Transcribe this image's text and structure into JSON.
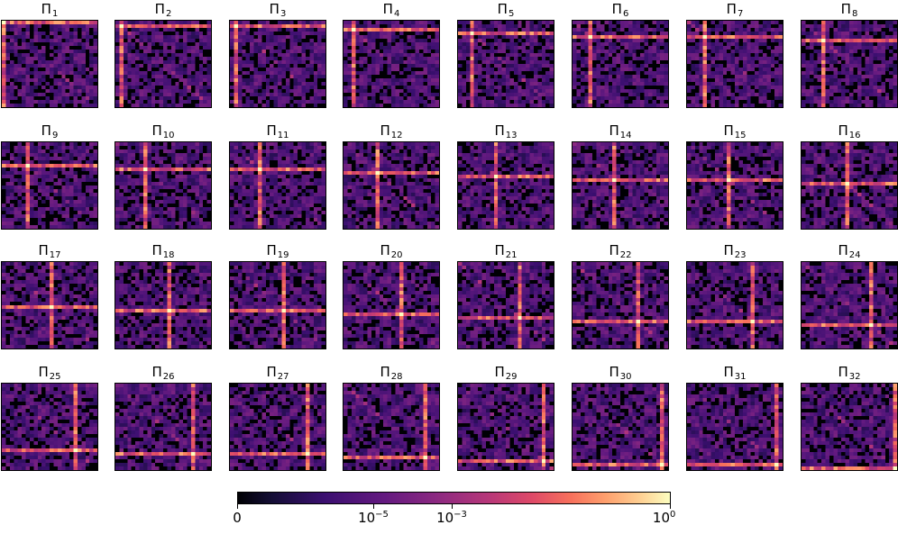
{
  "chart_data": {
    "type": "heatmap",
    "grid": {
      "rows": 4,
      "cols": 8
    },
    "colormap": "magma",
    "colorscale": "log",
    "panels": [
      {
        "title_base": "Π",
        "title_sub": "1"
      },
      {
        "title_base": "Π",
        "title_sub": "2"
      },
      {
        "title_base": "Π",
        "title_sub": "3"
      },
      {
        "title_base": "Π",
        "title_sub": "4"
      },
      {
        "title_base": "Π",
        "title_sub": "5"
      },
      {
        "title_base": "Π",
        "title_sub": "6"
      },
      {
        "title_base": "Π",
        "title_sub": "7"
      },
      {
        "title_base": "Π",
        "title_sub": "8"
      },
      {
        "title_base": "Π",
        "title_sub": "9"
      },
      {
        "title_base": "Π",
        "title_sub": "10"
      },
      {
        "title_base": "Π",
        "title_sub": "11"
      },
      {
        "title_base": "Π",
        "title_sub": "12"
      },
      {
        "title_base": "Π",
        "title_sub": "13"
      },
      {
        "title_base": "Π",
        "title_sub": "14"
      },
      {
        "title_base": "Π",
        "title_sub": "15"
      },
      {
        "title_base": "Π",
        "title_sub": "16"
      },
      {
        "title_base": "Π",
        "title_sub": "17"
      },
      {
        "title_base": "Π",
        "title_sub": "18"
      },
      {
        "title_base": "Π",
        "title_sub": "19"
      },
      {
        "title_base": "Π",
        "title_sub": "20"
      },
      {
        "title_base": "Π",
        "title_sub": "21"
      },
      {
        "title_base": "Π",
        "title_sub": "22"
      },
      {
        "title_base": "Π",
        "title_sub": "23"
      },
      {
        "title_base": "Π",
        "title_sub": "24"
      },
      {
        "title_base": "Π",
        "title_sub": "25"
      },
      {
        "title_base": "Π",
        "title_sub": "26"
      },
      {
        "title_base": "Π",
        "title_sub": "27"
      },
      {
        "title_base": "Π",
        "title_sub": "28"
      },
      {
        "title_base": "Π",
        "title_sub": "29"
      },
      {
        "title_base": "Π",
        "title_sub": "30"
      },
      {
        "title_base": "Π",
        "title_sub": "31"
      },
      {
        "title_base": "Π",
        "title_sub": "32"
      }
    ],
    "colorbar": {
      "orientation": "horizontal",
      "ticks": [
        {
          "value": 0,
          "base": "0",
          "exp": ""
        },
        {
          "value": 1e-05,
          "base": "10",
          "exp": "−5"
        },
        {
          "value": 0.001,
          "base": "10",
          "exp": "−3"
        },
        {
          "value": 1,
          "base": "10",
          "exp": "0"
        }
      ],
      "tick_fractions": [
        0,
        0.315,
        0.495,
        1
      ]
    }
  }
}
